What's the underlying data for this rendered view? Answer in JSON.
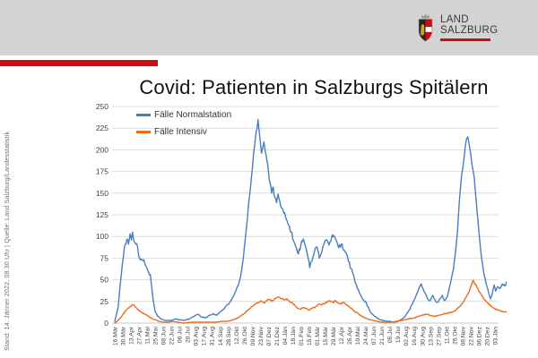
{
  "header": {
    "logo": {
      "line1": "LAND",
      "line2": "SALZBURG"
    }
  },
  "sidebar": {
    "source_note": "Stand: 14. Jänner 2022, 08.30 Uhr | Quelle: Land Salzburg/Landesstatistik"
  },
  "title": "Covid: Patienten in Salzburgs Spitälern",
  "colors": {
    "accent_red": "#d20a11",
    "header_gray": "#d3d3d3",
    "grid": "#dcdcdc",
    "axis_text": "#3f3f3f",
    "series_normalstation": "#4a7ebf",
    "series_intensiv": "#e96e1e"
  },
  "chart_data": {
    "type": "line",
    "title": "Covid: Patienten in Salzburgs Spitälern",
    "ylabel": "",
    "xlabel": "",
    "ylim": [
      0,
      250
    ],
    "y_tick_step": 25,
    "grid": true,
    "legend_position": "top-left-inside",
    "x_tick_interval_days": 14,
    "x_tick_labels": [
      "16.Mär",
      "30.Mär",
      "13.Apr",
      "27.Apr",
      "11.Mai",
      "25.Mai",
      "08.Jun",
      "22.Jun",
      "06.Jul",
      "20.Jul",
      "03.Aug",
      "17.Aug",
      "31.Aug",
      "14.Sep",
      "28.Sep",
      "12.Okt",
      "26.Okt",
      "09.Nov",
      "23.Nov",
      "07.Dez",
      "21.Dez",
      "04.Jän",
      "18.Jän",
      "01.Feb",
      "15.Feb",
      "01.Mär",
      "15.Mär",
      "29.Mär",
      "12.Apr",
      "26.Apr",
      "10.Mai",
      "24.Mai",
      "07.Jun",
      "21.Jun",
      "05.Jul",
      "19.Jul",
      "02.Aug",
      "16.Aug",
      "30.Aug",
      "13.Sep",
      "27.Sep",
      "11.Okt",
      "25.Okt",
      "08.Nov",
      "22.Nov",
      "06.Dez",
      "20.Dez",
      "03.Jän"
    ],
    "series": [
      {
        "name": "Fälle Normalstation",
        "color": "#4a7ebf",
        "points": [
          [
            0,
            2
          ],
          [
            0.4,
            18
          ],
          [
            0.8,
            55
          ],
          [
            1.2,
            88
          ],
          [
            1.5,
            97
          ],
          [
            1.7,
            91
          ],
          [
            1.9,
            103
          ],
          [
            2.05,
            96
          ],
          [
            2.2,
            105
          ],
          [
            2.4,
            94
          ],
          [
            2.6,
            91
          ],
          [
            2.8,
            89
          ],
          [
            3,
            76
          ],
          [
            3.3,
            74
          ],
          [
            3.6,
            73
          ],
          [
            3.9,
            65
          ],
          [
            4.2,
            58
          ],
          [
            4.4,
            56
          ],
          [
            4.7,
            30
          ],
          [
            5,
            13
          ],
          [
            5.3,
            8
          ],
          [
            5.7,
            5
          ],
          [
            6.2,
            3
          ],
          [
            7,
            3
          ],
          [
            7.5,
            5
          ],
          [
            8,
            4
          ],
          [
            8.6,
            3
          ],
          [
            9.2,
            5
          ],
          [
            9.8,
            8
          ],
          [
            10.3,
            10
          ],
          [
            10.7,
            7
          ],
          [
            11.2,
            6
          ],
          [
            11.7,
            9
          ],
          [
            12.2,
            11
          ],
          [
            12.6,
            9
          ],
          [
            13,
            13
          ],
          [
            13.4,
            16
          ],
          [
            13.8,
            20
          ],
          [
            14.2,
            24
          ],
          [
            14.6,
            30
          ],
          [
            15,
            38
          ],
          [
            15.4,
            48
          ],
          [
            15.7,
            62
          ],
          [
            16,
            85
          ],
          [
            16.3,
            112
          ],
          [
            16.6,
            142
          ],
          [
            16.9,
            168
          ],
          [
            17.1,
            188
          ],
          [
            17.3,
            205
          ],
          [
            17.5,
            222
          ],
          [
            17.7,
            235
          ],
          [
            17.85,
            222
          ],
          [
            18,
            208
          ],
          [
            18.15,
            196
          ],
          [
            18.3,
            203
          ],
          [
            18.45,
            209
          ],
          [
            18.6,
            198
          ],
          [
            18.8,
            188
          ],
          [
            19,
            175
          ],
          [
            19.2,
            162
          ],
          [
            19.4,
            150
          ],
          [
            19.6,
            157
          ],
          [
            19.8,
            145
          ],
          [
            20,
            139
          ],
          [
            20.2,
            149
          ],
          [
            20.4,
            141
          ],
          [
            20.6,
            133
          ],
          [
            20.9,
            127
          ],
          [
            21.2,
            120
          ],
          [
            21.5,
            113
          ],
          [
            21.8,
            105
          ],
          [
            22.1,
            95
          ],
          [
            22.4,
            88
          ],
          [
            22.7,
            80
          ],
          [
            23,
            90
          ],
          [
            23.3,
            97
          ],
          [
            23.6,
            88
          ],
          [
            23.9,
            75
          ],
          [
            24.1,
            64
          ],
          [
            24.4,
            72
          ],
          [
            24.7,
            83
          ],
          [
            25,
            88
          ],
          [
            25.3,
            75
          ],
          [
            25.6,
            82
          ],
          [
            25.9,
            92
          ],
          [
            26.2,
            96
          ],
          [
            26.5,
            90
          ],
          [
            26.8,
            98
          ],
          [
            27.1,
            101
          ],
          [
            27.4,
            95
          ],
          [
            27.7,
            87
          ],
          [
            28,
            91
          ],
          [
            28.3,
            84
          ],
          [
            28.6,
            81
          ],
          [
            28.9,
            71
          ],
          [
            29.2,
            63
          ],
          [
            29.5,
            56
          ],
          [
            29.8,
            45
          ],
          [
            30.1,
            39
          ],
          [
            30.4,
            32
          ],
          [
            30.7,
            27
          ],
          [
            31,
            25
          ],
          [
            31.3,
            19
          ],
          [
            31.6,
            13
          ],
          [
            32,
            9
          ],
          [
            32.4,
            6
          ],
          [
            32.8,
            4
          ],
          [
            33.2,
            3
          ],
          [
            33.6,
            2
          ],
          [
            34,
            2
          ],
          [
            34.5,
            1
          ],
          [
            35,
            2
          ],
          [
            35.4,
            4
          ],
          [
            35.8,
            7
          ],
          [
            36.2,
            12
          ],
          [
            36.5,
            16
          ],
          [
            36.8,
            22
          ],
          [
            37.1,
            28
          ],
          [
            37.4,
            35
          ],
          [
            37.7,
            42
          ],
          [
            37.9,
            45
          ],
          [
            38.1,
            40
          ],
          [
            38.4,
            34
          ],
          [
            38.7,
            28
          ],
          [
            39,
            26
          ],
          [
            39.3,
            32
          ],
          [
            39.6,
            27
          ],
          [
            39.9,
            24
          ],
          [
            40.2,
            28
          ],
          [
            40.5,
            32
          ],
          [
            40.8,
            26
          ],
          [
            41.1,
            30
          ],
          [
            41.4,
            42
          ],
          [
            41.7,
            55
          ],
          [
            42,
            72
          ],
          [
            42.3,
            98
          ],
          [
            42.5,
            125
          ],
          [
            42.7,
            152
          ],
          [
            42.9,
            172
          ],
          [
            43.05,
            180
          ],
          [
            43.2,
            192
          ],
          [
            43.35,
            205
          ],
          [
            43.5,
            213
          ],
          [
            43.65,
            215
          ],
          [
            43.8,
            207
          ],
          [
            44,
            196
          ],
          [
            44.15,
            184
          ],
          [
            44.3,
            176
          ],
          [
            44.45,
            168
          ],
          [
            44.6,
            150
          ],
          [
            44.8,
            128
          ],
          [
            45,
            108
          ],
          [
            45.2,
            88
          ],
          [
            45.4,
            72
          ],
          [
            45.65,
            56
          ],
          [
            45.9,
            46
          ],
          [
            46.2,
            36
          ],
          [
            46.45,
            28
          ],
          [
            46.7,
            35
          ],
          [
            46.9,
            44
          ],
          [
            47.1,
            37
          ],
          [
            47.35,
            42
          ],
          [
            47.6,
            40
          ],
          [
            47.9,
            45
          ],
          [
            48.2,
            43
          ],
          [
            48.4,
            47
          ]
        ]
      },
      {
        "name": "Fälle Intensiv",
        "color": "#e96e1e",
        "points": [
          [
            0,
            0
          ],
          [
            0.5,
            4
          ],
          [
            1,
            10
          ],
          [
            1.5,
            16
          ],
          [
            2,
            19
          ],
          [
            2.3,
            21
          ],
          [
            2.6,
            18
          ],
          [
            3,
            15
          ],
          [
            3.4,
            12
          ],
          [
            3.8,
            10
          ],
          [
            4.2,
            8
          ],
          [
            4.6,
            5
          ],
          [
            5,
            4
          ],
          [
            5.5,
            2
          ],
          [
            6,
            1
          ],
          [
            6.6,
            1
          ],
          [
            7.2,
            2
          ],
          [
            7.8,
            1
          ],
          [
            8.5,
            0
          ],
          [
            9.5,
            1
          ],
          [
            10.5,
            1
          ],
          [
            11.5,
            1
          ],
          [
            12.5,
            1
          ],
          [
            13.2,
            2
          ],
          [
            13.8,
            2
          ],
          [
            14.4,
            3
          ],
          [
            15,
            5
          ],
          [
            15.5,
            8
          ],
          [
            16,
            11
          ],
          [
            16.5,
            15
          ],
          [
            17,
            19
          ],
          [
            17.4,
            22
          ],
          [
            17.8,
            24
          ],
          [
            18.2,
            25
          ],
          [
            18.5,
            23
          ],
          [
            18.8,
            26
          ],
          [
            19.1,
            27
          ],
          [
            19.4,
            25
          ],
          [
            19.7,
            27
          ],
          [
            20,
            29
          ],
          [
            20.3,
            30
          ],
          [
            20.6,
            28
          ],
          [
            21,
            27
          ],
          [
            21.3,
            28
          ],
          [
            21.6,
            25
          ],
          [
            22,
            23
          ],
          [
            22.3,
            20
          ],
          [
            22.6,
            17
          ],
          [
            23,
            16
          ],
          [
            23.3,
            18
          ],
          [
            23.6,
            17
          ],
          [
            24,
            15
          ],
          [
            24.3,
            17
          ],
          [
            24.6,
            18
          ],
          [
            25,
            20
          ],
          [
            25.3,
            22
          ],
          [
            25.6,
            21
          ],
          [
            26,
            23
          ],
          [
            26.3,
            25
          ],
          [
            26.6,
            26
          ],
          [
            27,
            24
          ],
          [
            27.3,
            26
          ],
          [
            27.6,
            23
          ],
          [
            28,
            22
          ],
          [
            28.3,
            24
          ],
          [
            28.6,
            21
          ],
          [
            29,
            19
          ],
          [
            29.3,
            17
          ],
          [
            29.6,
            14
          ],
          [
            30,
            12
          ],
          [
            30.4,
            9
          ],
          [
            30.8,
            7
          ],
          [
            31.2,
            5
          ],
          [
            31.6,
            4
          ],
          [
            32,
            3
          ],
          [
            32.5,
            2
          ],
          [
            33,
            1
          ],
          [
            33.6,
            1
          ],
          [
            34.2,
            1
          ],
          [
            34.8,
            2
          ],
          [
            35.4,
            3
          ],
          [
            36,
            4
          ],
          [
            36.5,
            5
          ],
          [
            37,
            6
          ],
          [
            37.5,
            8
          ],
          [
            38,
            9
          ],
          [
            38.5,
            10
          ],
          [
            39,
            9
          ],
          [
            39.5,
            8
          ],
          [
            40,
            9
          ],
          [
            40.5,
            10
          ],
          [
            41,
            11
          ],
          [
            41.5,
            12
          ],
          [
            42,
            14
          ],
          [
            42.4,
            17
          ],
          [
            42.8,
            21
          ],
          [
            43.2,
            26
          ],
          [
            43.5,
            31
          ],
          [
            43.8,
            36
          ],
          [
            44,
            42
          ],
          [
            44.2,
            47
          ],
          [
            44.4,
            48
          ],
          [
            44.6,
            45
          ],
          [
            44.8,
            41
          ],
          [
            45.1,
            36
          ],
          [
            45.4,
            31
          ],
          [
            45.7,
            27
          ],
          [
            46,
            24
          ],
          [
            46.3,
            21
          ],
          [
            46.6,
            19
          ],
          [
            47,
            17
          ],
          [
            47.4,
            15
          ],
          [
            47.8,
            14
          ],
          [
            48.1,
            13
          ],
          [
            48.4,
            13
          ]
        ]
      }
    ]
  }
}
